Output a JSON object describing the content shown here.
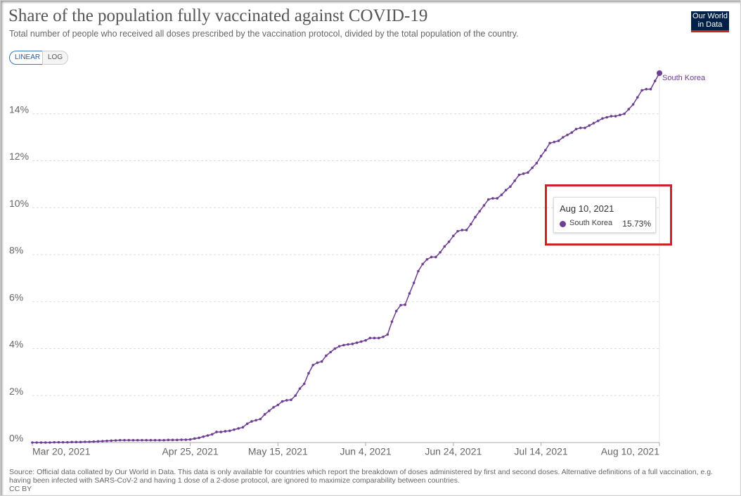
{
  "chart_data": {
    "type": "line",
    "title": "Share of the population fully vaccinated against COVID-19",
    "subtitle": "Total number of people who received all doses prescribed by the vaccination protocol, divided by the total population of the country.",
    "logo": "Our World in Data",
    "scale_buttons": [
      "LINEAR",
      "LOG"
    ],
    "source": "Source: Official data collated by Our World in Data. This data is only available for countries which report the breakdown of doses administered by first and second doses. Alternative definitions of a full vaccination, e.g. having been infected with SARS-CoV-2 and having 1 dose of a 2-dose protocol, are ignored to maximize comparability between countries.",
    "license": "CC BY",
    "tooltip": {
      "title": "Aug 10, 2021",
      "value_label": "15.73%"
    },
    "x": [
      "2021-03-20",
      "2021-03-21",
      "2021-03-22",
      "2021-03-23",
      "2021-03-24",
      "2021-03-25",
      "2021-03-26",
      "2021-03-27",
      "2021-03-28",
      "2021-03-29",
      "2021-03-30",
      "2021-03-31",
      "2021-04-01",
      "2021-04-02",
      "2021-04-03",
      "2021-04-04",
      "2021-04-05",
      "2021-04-06",
      "2021-04-07",
      "2021-04-08",
      "2021-04-09",
      "2021-04-10",
      "2021-04-11",
      "2021-04-12",
      "2021-04-13",
      "2021-04-14",
      "2021-04-15",
      "2021-04-16",
      "2021-04-17",
      "2021-04-18",
      "2021-04-19",
      "2021-04-20",
      "2021-04-21",
      "2021-04-22",
      "2021-04-23",
      "2021-04-24",
      "2021-04-25",
      "2021-04-26",
      "2021-04-27",
      "2021-04-28",
      "2021-04-29",
      "2021-04-30",
      "2021-05-01",
      "2021-05-02",
      "2021-05-03",
      "2021-05-04",
      "2021-05-05",
      "2021-05-06",
      "2021-05-07",
      "2021-05-08",
      "2021-05-09",
      "2021-05-10",
      "2021-05-11",
      "2021-05-12",
      "2021-05-13",
      "2021-05-14",
      "2021-05-15",
      "2021-05-16",
      "2021-05-17",
      "2021-05-18",
      "2021-05-19",
      "2021-05-20",
      "2021-05-21",
      "2021-05-22",
      "2021-05-23",
      "2021-05-24",
      "2021-05-25",
      "2021-05-26",
      "2021-05-27",
      "2021-05-28",
      "2021-05-29",
      "2021-05-30",
      "2021-05-31",
      "2021-06-01",
      "2021-06-02",
      "2021-06-03",
      "2021-06-04",
      "2021-06-05",
      "2021-06-06",
      "2021-06-07",
      "2021-06-08",
      "2021-06-09",
      "2021-06-10",
      "2021-06-11",
      "2021-06-12",
      "2021-06-13",
      "2021-06-14",
      "2021-06-15",
      "2021-06-16",
      "2021-06-17",
      "2021-06-18",
      "2021-06-19",
      "2021-06-20",
      "2021-06-21",
      "2021-06-22",
      "2021-06-23",
      "2021-06-24",
      "2021-06-25",
      "2021-06-26",
      "2021-06-27",
      "2021-06-28",
      "2021-06-29",
      "2021-06-30",
      "2021-07-01",
      "2021-07-02",
      "2021-07-03",
      "2021-07-04",
      "2021-07-05",
      "2021-07-06",
      "2021-07-07",
      "2021-07-08",
      "2021-07-09",
      "2021-07-10",
      "2021-07-11",
      "2021-07-12",
      "2021-07-13",
      "2021-07-14",
      "2021-07-15",
      "2021-07-16",
      "2021-07-17",
      "2021-07-18",
      "2021-07-19",
      "2021-07-20",
      "2021-07-21",
      "2021-07-22",
      "2021-07-23",
      "2021-07-24",
      "2021-07-25",
      "2021-07-26",
      "2021-07-27",
      "2021-07-28",
      "2021-07-29",
      "2021-07-30",
      "2021-07-31",
      "2021-08-01",
      "2021-08-02",
      "2021-08-03",
      "2021-08-04",
      "2021-08-05",
      "2021-08-06",
      "2021-08-07",
      "2021-08-08",
      "2021-08-09",
      "2021-08-10"
    ],
    "series": [
      {
        "name": "South Korea",
        "color": "#6d3e91",
        "values": [
          0,
          0,
          0,
          0,
          0,
          0.01,
          0.01,
          0.01,
          0.01,
          0.02,
          0.02,
          0.02,
          0.03,
          0.03,
          0.04,
          0.05,
          0.06,
          0.07,
          0.08,
          0.09,
          0.1,
          0.1,
          0.1,
          0.1,
          0.1,
          0.1,
          0.1,
          0.1,
          0.1,
          0.1,
          0.1,
          0.11,
          0.11,
          0.11,
          0.12,
          0.12,
          0.13,
          0.17,
          0.2,
          0.25,
          0.3,
          0.35,
          0.45,
          0.45,
          0.48,
          0.5,
          0.55,
          0.6,
          0.65,
          0.8,
          0.9,
          0.95,
          1.0,
          1.2,
          1.35,
          1.5,
          1.6,
          1.75,
          1.8,
          1.82,
          2.0,
          2.3,
          2.5,
          2.95,
          3.3,
          3.4,
          3.45,
          3.7,
          3.85,
          4.0,
          4.1,
          4.15,
          4.18,
          4.2,
          4.25,
          4.3,
          4.35,
          4.45,
          4.45,
          4.45,
          4.5,
          4.6,
          5.15,
          5.6,
          5.85,
          5.87,
          6.35,
          6.8,
          7.3,
          7.6,
          7.8,
          7.9,
          7.9,
          8.1,
          8.35,
          8.55,
          8.8,
          9.0,
          9.05,
          9.05,
          9.3,
          9.6,
          9.85,
          10.1,
          10.35,
          10.4,
          10.4,
          10.55,
          10.75,
          10.9,
          11.15,
          11.4,
          11.45,
          11.5,
          11.7,
          11.9,
          12.2,
          12.45,
          12.75,
          12.8,
          12.85,
          13.0,
          13.1,
          13.2,
          13.35,
          13.4,
          13.4,
          13.5,
          13.6,
          13.7,
          13.8,
          13.85,
          13.9,
          13.9,
          13.95,
          14.0,
          14.2,
          14.4,
          14.7,
          15.0,
          15.05,
          15.05,
          15.4,
          15.73
        ]
      }
    ],
    "xlim": [
      "2021-03-20",
      "2021-08-10"
    ],
    "xticks": [
      {
        "value": "2021-03-20",
        "label": "Mar 20, 2021"
      },
      {
        "value": "2021-04-25",
        "label": "Apr 25, 2021"
      },
      {
        "value": "2021-05-15",
        "label": "May 15, 2021"
      },
      {
        "value": "2021-06-04",
        "label": "Jun 4, 2021"
      },
      {
        "value": "2021-06-24",
        "label": "Jun 24, 2021"
      },
      {
        "value": "2021-07-14",
        "label": "Jul 14, 2021"
      },
      {
        "value": "2021-08-10",
        "label": "Aug 10, 2021"
      }
    ],
    "ylim": [
      0,
      16
    ],
    "yticks": [
      {
        "value": 0,
        "label": "0%"
      },
      {
        "value": 2,
        "label": "2%"
      },
      {
        "value": 4,
        "label": "4%"
      },
      {
        "value": 6,
        "label": "6%"
      },
      {
        "value": 8,
        "label": "8%"
      },
      {
        "value": 10,
        "label": "10%"
      },
      {
        "value": 12,
        "label": "12%"
      },
      {
        "value": 14,
        "label": "14%"
      }
    ],
    "grid": true
  }
}
